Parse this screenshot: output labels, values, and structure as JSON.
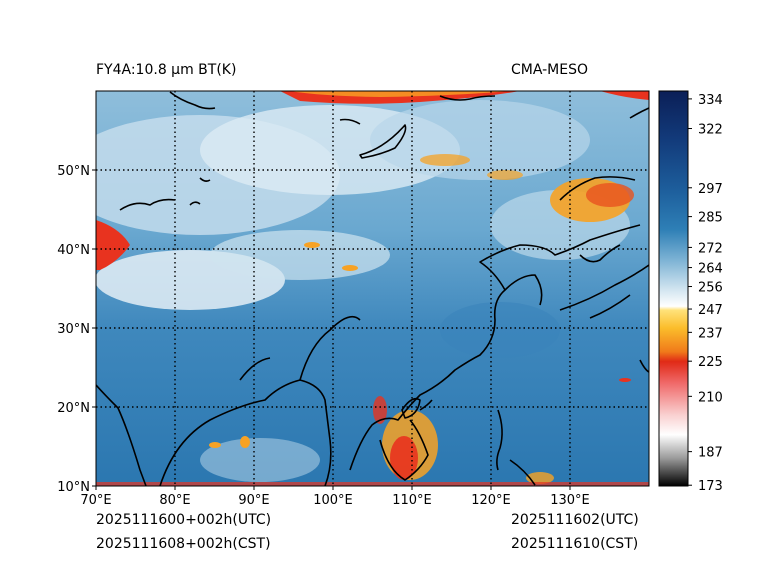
{
  "title_left": "FY4A:10.8 µm BT(K)",
  "title_right": "CMA-MESO",
  "footer": {
    "init_utc": "2025111600+002h(UTC)",
    "init_cst": "2025111608+002h(CST)",
    "valid_utc": "2025111602(UTC)",
    "valid_cst": "2025111610(CST)"
  },
  "map": {
    "lon_range": [
      70,
      140
    ],
    "lat_range": [
      10,
      60
    ],
    "lon_ticks": [
      "70°E",
      "80°E",
      "90°E",
      "100°E",
      "110°E",
      "120°E",
      "130°E"
    ],
    "lat_ticks": [
      "10°N",
      "20°N",
      "30°N",
      "40°N",
      "50°N"
    ],
    "lon_tick_values": [
      70,
      80,
      90,
      100,
      110,
      120,
      130
    ],
    "lat_tick_values": [
      10,
      20,
      30,
      40,
      50
    ]
  },
  "colorbar": {
    "labels": [
      "334",
      "322",
      "297",
      "285",
      "272",
      "264",
      "256",
      "247",
      "237",
      "225",
      "210",
      "187",
      "173"
    ],
    "values": [
      334,
      322,
      297,
      285,
      272,
      264,
      256,
      247,
      237,
      225,
      210,
      187,
      173
    ]
  },
  "colors": {
    "ocean_base": "#2a78b0",
    "land_base": "#4f95c4",
    "cloud_light": "#dbeaf3",
    "cold_red": "#e8331f",
    "cold_orange": "#f7a224"
  }
}
